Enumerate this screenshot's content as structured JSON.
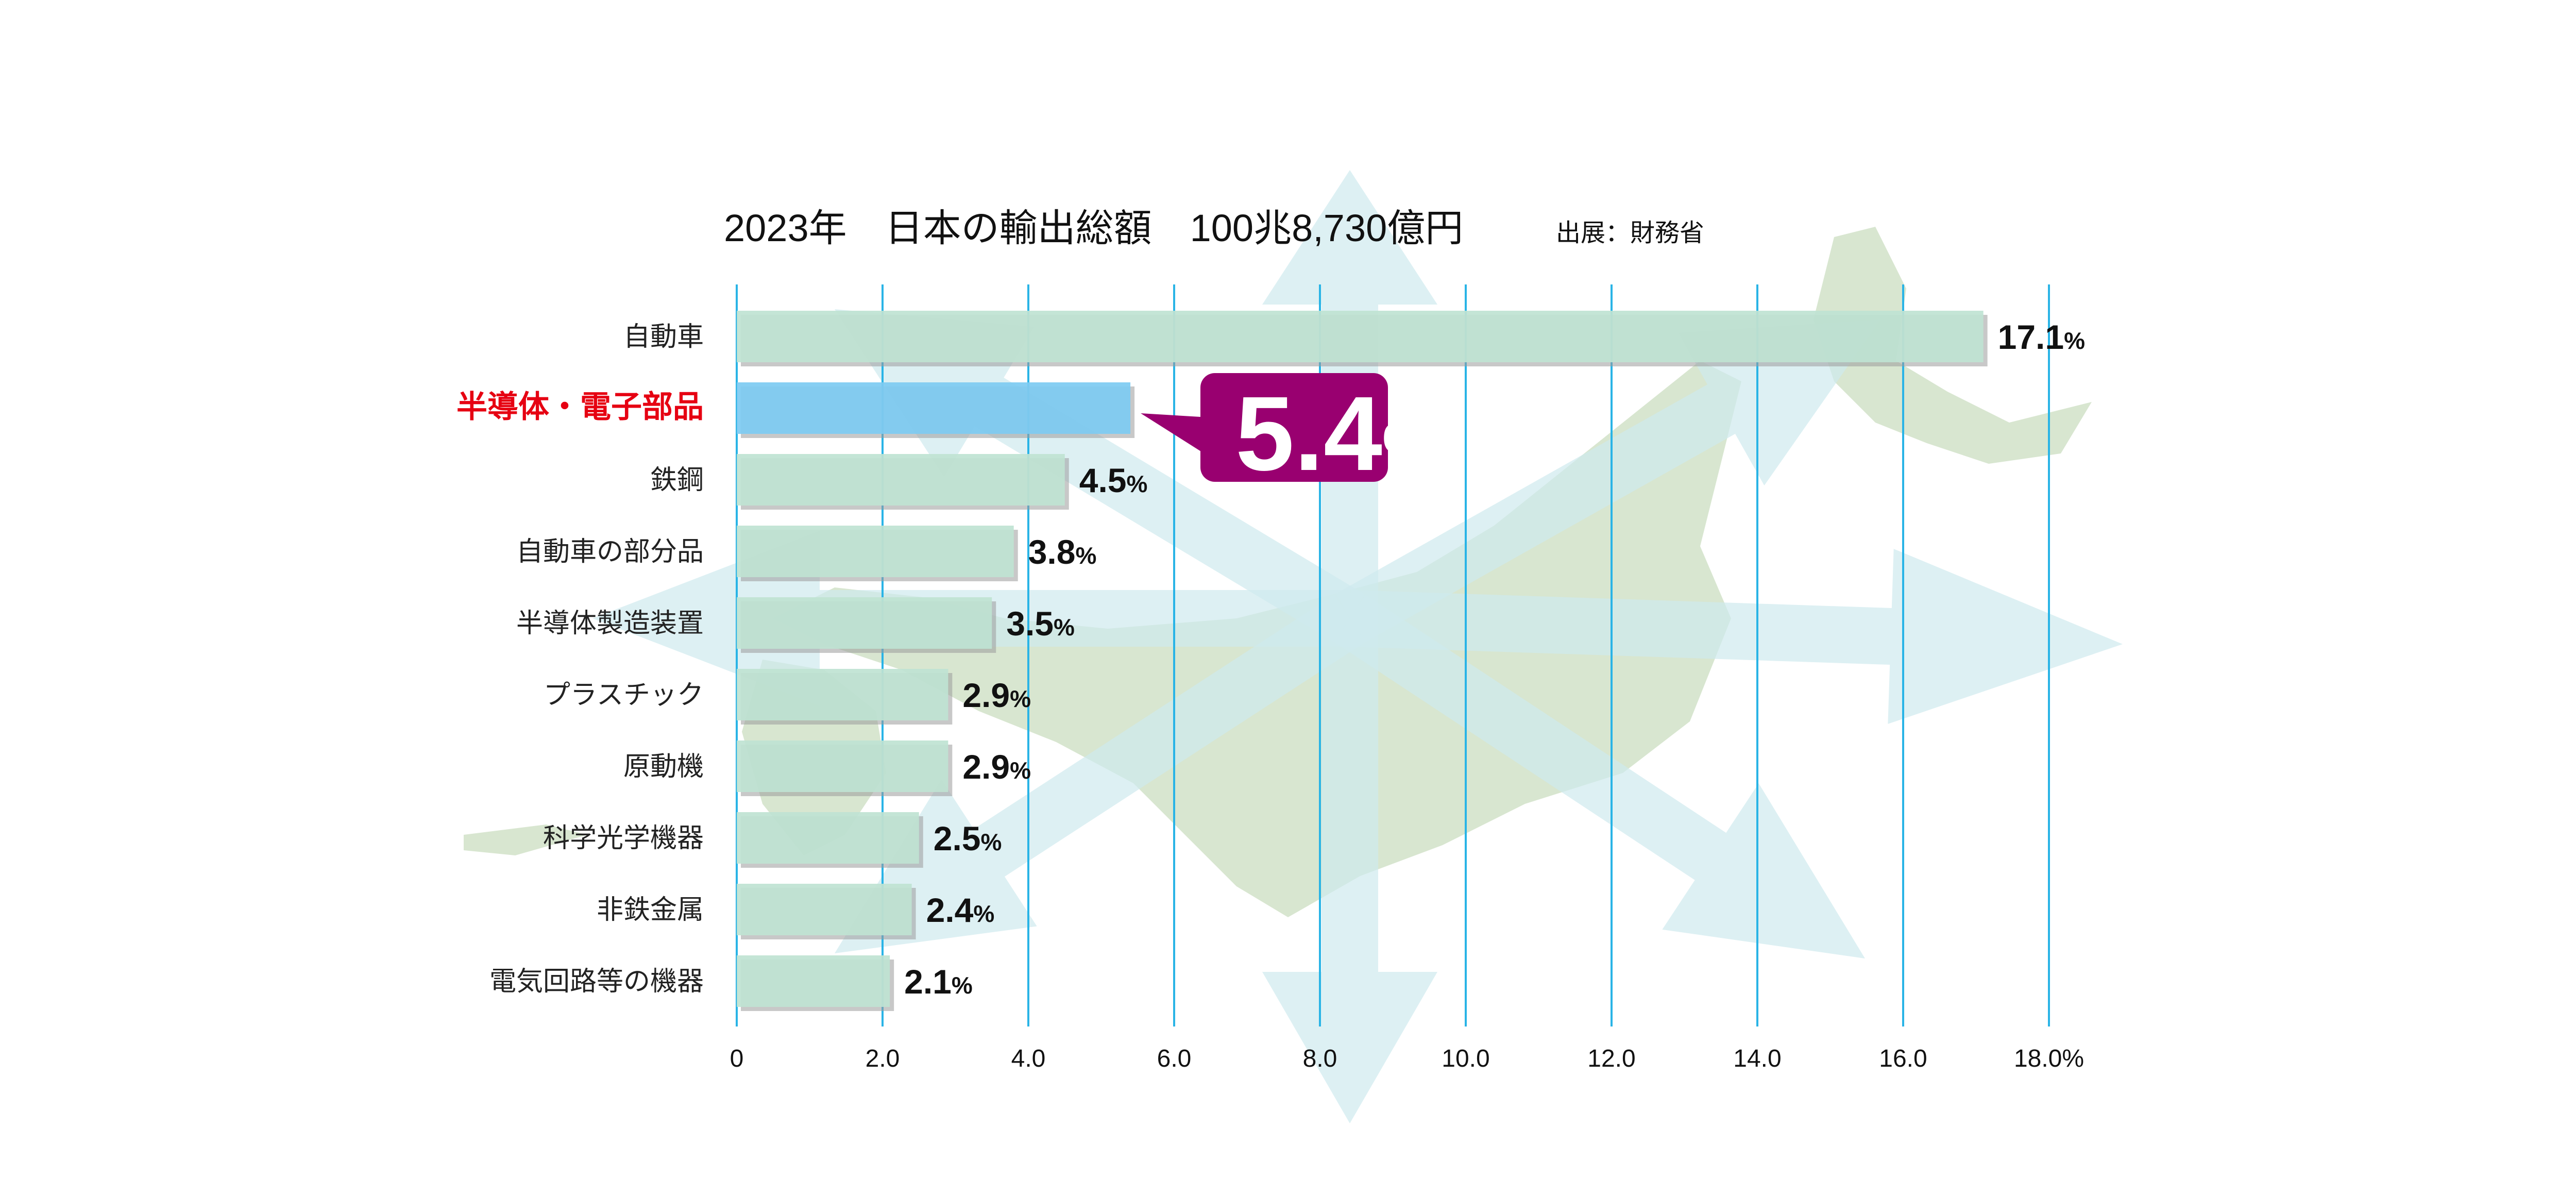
{
  "chart_data": {
    "type": "bar",
    "orientation": "horizontal",
    "title": "2023年　日本の輸出総額　100兆8,730億円",
    "source": "出展：財務省",
    "categories": [
      "自動車",
      "半導体・電子部品",
      "鉄鋼",
      "自動車の部分品",
      "半導体製造装置",
      "プラスチック",
      "原動機",
      "科学光学機器",
      "非鉄金属",
      "電気回路等の機器"
    ],
    "values": [
      17.1,
      5.4,
      4.5,
      3.8,
      3.5,
      2.9,
      2.9,
      2.5,
      2.4,
      2.1
    ],
    "value_labels": [
      "17.1",
      "5.4",
      "4.5",
      "3.8",
      "3.5",
      "2.9",
      "2.9",
      "2.5",
      "2.4",
      "2.1"
    ],
    "unit": "%",
    "highlight_index": 1,
    "callout_label": "5.4",
    "xlim": [
      0,
      18
    ],
    "xticks": [
      0,
      2,
      4,
      6,
      8,
      10,
      12,
      14,
      16,
      18
    ],
    "xtick_labels": [
      "0",
      "2.0",
      "4.0",
      "6.0",
      "8.0",
      "10.0",
      "12.0",
      "14.0",
      "16.0",
      "18.0%"
    ],
    "grid": true,
    "colors": {
      "bar": "#bfe3d2",
      "highlight_bar": "#7dcbf2",
      "highlight_label": "#e60012",
      "callout": "#990070",
      "grid": "#2ab4e6",
      "map": "#d8e6d0",
      "arrows": "#cfe9ee"
    }
  }
}
